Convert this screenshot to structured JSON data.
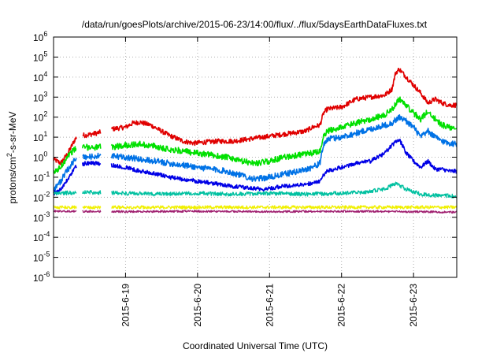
{
  "chart_data": {
    "type": "line",
    "title": "/data/run/goesPlots/archive/2015-06-23/14:00/flux/../flux/5daysEarthDataFluxes.txt",
    "xlabel": "Coordinated Universal Time (UTC)",
    "ylabel": "protons/cm²-s-sr-MeV",
    "ylabel_parts": {
      "pre": "protons/cm",
      "sup": "2",
      "post": "-s-sr-MeV"
    },
    "yscale": "log",
    "ylim_exp": [
      -6,
      6
    ],
    "y_tick_labels": [
      {
        "exp": -6,
        "base": "10",
        "sup": "-6"
      },
      {
        "exp": -5,
        "base": "10",
        "sup": "-5"
      },
      {
        "exp": -4,
        "base": "10",
        "sup": "-4"
      },
      {
        "exp": -3,
        "base": "10",
        "sup": "-3"
      },
      {
        "exp": -2,
        "base": "10",
        "sup": "-2"
      },
      {
        "exp": -1,
        "base": "10",
        "sup": "-1"
      },
      {
        "exp": 0,
        "base": "10",
        "sup": "0"
      },
      {
        "exp": 1,
        "base": "10",
        "sup": "1"
      },
      {
        "exp": 2,
        "base": "10",
        "sup": "2"
      },
      {
        "exp": 3,
        "base": "10",
        "sup": "3"
      },
      {
        "exp": 4,
        "base": "10",
        "sup": "4"
      },
      {
        "exp": 5,
        "base": "10",
        "sup": "5"
      },
      {
        "exp": 6,
        "base": "10",
        "sup": "6"
      }
    ],
    "xlim_days": [
      18.0,
      23.6
    ],
    "x_ticks": [
      {
        "day": 19,
        "label": "2015-6-19"
      },
      {
        "day": 20,
        "label": "2015-6-20"
      },
      {
        "day": 21,
        "label": "2015-6-21"
      },
      {
        "day": 22,
        "label": "2015-6-22"
      },
      {
        "day": 23,
        "label": "2015-6-23"
      }
    ],
    "grid": true,
    "legend": "none",
    "series": [
      {
        "color": "#e00000",
        "noise": 0.12,
        "gaps": [
          [
            18.32,
            18.4
          ],
          [
            18.66,
            18.8
          ]
        ],
        "x": [
          18.0,
          18.1,
          18.2,
          18.3,
          18.35,
          18.45,
          18.6,
          18.8,
          19.0,
          19.1,
          19.2,
          19.35,
          19.6,
          19.8,
          19.95,
          20.1,
          20.3,
          20.5,
          20.7,
          20.9,
          21.1,
          21.3,
          21.5,
          21.6,
          21.7,
          21.75,
          21.8,
          22.0,
          22.2,
          22.4,
          22.6,
          22.7,
          22.75,
          22.8,
          22.9,
          23.0,
          23.1,
          23.2,
          23.3,
          23.4,
          23.5,
          23.6
        ],
        "y_exp": [
          -0.1,
          -0.3,
          0.2,
          0.9,
          1.1,
          1.1,
          1.2,
          1.4,
          1.5,
          1.7,
          1.75,
          1.6,
          1.1,
          0.8,
          0.7,
          0.75,
          0.8,
          0.8,
          0.9,
          1.0,
          1.1,
          1.2,
          1.3,
          1.5,
          1.6,
          2.2,
          2.4,
          2.5,
          2.9,
          3.0,
          3.1,
          3.4,
          4.2,
          4.4,
          4.0,
          3.6,
          3.2,
          2.7,
          2.9,
          2.7,
          2.6,
          2.6
        ]
      },
      {
        "color": "#00e000",
        "noise": 0.15,
        "gaps": [
          [
            18.32,
            18.4
          ],
          [
            18.66,
            18.8
          ]
        ],
        "x": [
          18.0,
          18.1,
          18.2,
          18.3,
          18.35,
          18.45,
          18.6,
          18.8,
          19.0,
          19.2,
          19.4,
          19.6,
          19.8,
          20.0,
          20.2,
          20.4,
          20.6,
          20.8,
          20.9,
          21.0,
          21.2,
          21.4,
          21.6,
          21.7,
          21.75,
          21.8,
          22.0,
          22.2,
          22.4,
          22.6,
          22.7,
          22.8,
          22.9,
          23.0,
          23.1,
          23.2,
          23.3,
          23.4,
          23.5,
          23.6
        ],
        "y_exp": [
          -0.8,
          -0.5,
          0.1,
          0.4,
          0.5,
          0.5,
          0.5,
          0.5,
          0.6,
          0.65,
          0.55,
          0.4,
          0.3,
          0.2,
          0.1,
          0.0,
          -0.2,
          -0.3,
          -0.25,
          -0.2,
          0.0,
          0.1,
          0.2,
          0.3,
          1.0,
          1.3,
          1.5,
          1.7,
          1.9,
          2.1,
          2.4,
          2.9,
          2.6,
          2.2,
          1.9,
          2.3,
          1.9,
          1.6,
          1.5,
          1.5
        ]
      },
      {
        "color": "#0072e6",
        "noise": 0.15,
        "gaps": [
          [
            18.32,
            18.4
          ],
          [
            18.66,
            18.8
          ]
        ],
        "x": [
          18.0,
          18.1,
          18.2,
          18.3,
          18.35,
          18.45,
          18.6,
          18.8,
          19.0,
          19.2,
          19.4,
          19.6,
          19.8,
          20.0,
          20.2,
          20.4,
          20.6,
          20.8,
          20.9,
          21.0,
          21.2,
          21.4,
          21.6,
          21.7,
          21.75,
          21.8,
          22.0,
          22.2,
          22.4,
          22.6,
          22.7,
          22.8,
          22.9,
          23.0,
          23.1,
          23.2,
          23.3,
          23.4,
          23.5,
          23.6
        ],
        "y_exp": [
          -1.6,
          -1.2,
          -0.6,
          -0.1,
          0.0,
          0.0,
          0.05,
          0.05,
          0.0,
          -0.1,
          -0.2,
          -0.3,
          -0.4,
          -0.5,
          -0.6,
          -0.7,
          -0.9,
          -1.1,
          -1.05,
          -1.0,
          -0.85,
          -0.7,
          -0.5,
          -0.3,
          0.6,
          0.9,
          1.0,
          1.2,
          1.4,
          1.6,
          1.7,
          2.0,
          1.8,
          1.5,
          1.0,
          1.3,
          1.0,
          0.8,
          0.7,
          0.65
        ]
      },
      {
        "color": "#0000e6",
        "noise": 0.1,
        "gaps": [
          [
            18.32,
            18.4
          ],
          [
            18.66,
            18.8
          ]
        ],
        "x": [
          18.0,
          18.1,
          18.2,
          18.3,
          18.35,
          18.45,
          18.6,
          18.8,
          19.0,
          19.2,
          19.4,
          19.6,
          19.8,
          20.0,
          20.2,
          20.4,
          20.6,
          20.8,
          20.9,
          21.0,
          21.2,
          21.4,
          21.6,
          21.7,
          21.75,
          21.8,
          22.0,
          22.2,
          22.4,
          22.6,
          22.7,
          22.8,
          22.9,
          23.0,
          23.1,
          23.2,
          23.3,
          23.4,
          23.5,
          23.6
        ],
        "y_exp": [
          -1.8,
          -1.6,
          -1.1,
          -0.5,
          -0.4,
          -0.3,
          -0.3,
          -0.4,
          -0.5,
          -0.7,
          -0.8,
          -1.0,
          -1.1,
          -1.2,
          -1.3,
          -1.4,
          -1.5,
          -1.55,
          -1.6,
          -1.55,
          -1.45,
          -1.4,
          -1.3,
          -1.2,
          -0.9,
          -0.7,
          -0.5,
          -0.3,
          -0.2,
          0.2,
          0.6,
          0.9,
          0.2,
          -0.2,
          -0.5,
          -0.2,
          -0.6,
          -0.6,
          -0.7,
          -0.7
        ]
      },
      {
        "color": "#00c0a0",
        "noise": 0.1,
        "gaps": [
          [
            18.32,
            18.4
          ],
          [
            18.66,
            18.8
          ]
        ],
        "x": [
          18.0,
          18.5,
          19.0,
          19.5,
          20.0,
          20.5,
          21.0,
          21.5,
          22.0,
          22.3,
          22.6,
          22.75,
          22.9,
          23.1,
          23.3,
          23.6
        ],
        "y_exp": [
          -1.8,
          -1.75,
          -1.8,
          -1.85,
          -1.8,
          -1.85,
          -1.8,
          -1.85,
          -1.8,
          -1.75,
          -1.6,
          -1.3,
          -1.6,
          -1.85,
          -1.9,
          -1.95
        ]
      },
      {
        "color": "#f0f000",
        "noise": 0.08,
        "gaps": [
          [
            18.32,
            18.4
          ],
          [
            18.66,
            18.8
          ]
        ],
        "x": [
          18.0,
          19.0,
          20.0,
          21.0,
          22.0,
          23.0,
          23.6
        ],
        "y_exp": [
          -2.5,
          -2.5,
          -2.5,
          -2.5,
          -2.5,
          -2.5,
          -2.5
        ]
      },
      {
        "color": "#a02070",
        "noise": 0.05,
        "gaps": [
          [
            18.32,
            18.4
          ],
          [
            18.66,
            18.8
          ]
        ],
        "x": [
          18.0,
          19.0,
          20.0,
          21.0,
          22.0,
          23.0,
          23.6
        ],
        "y_exp": [
          -2.7,
          -2.72,
          -2.7,
          -2.72,
          -2.7,
          -2.72,
          -2.75
        ]
      }
    ]
  }
}
